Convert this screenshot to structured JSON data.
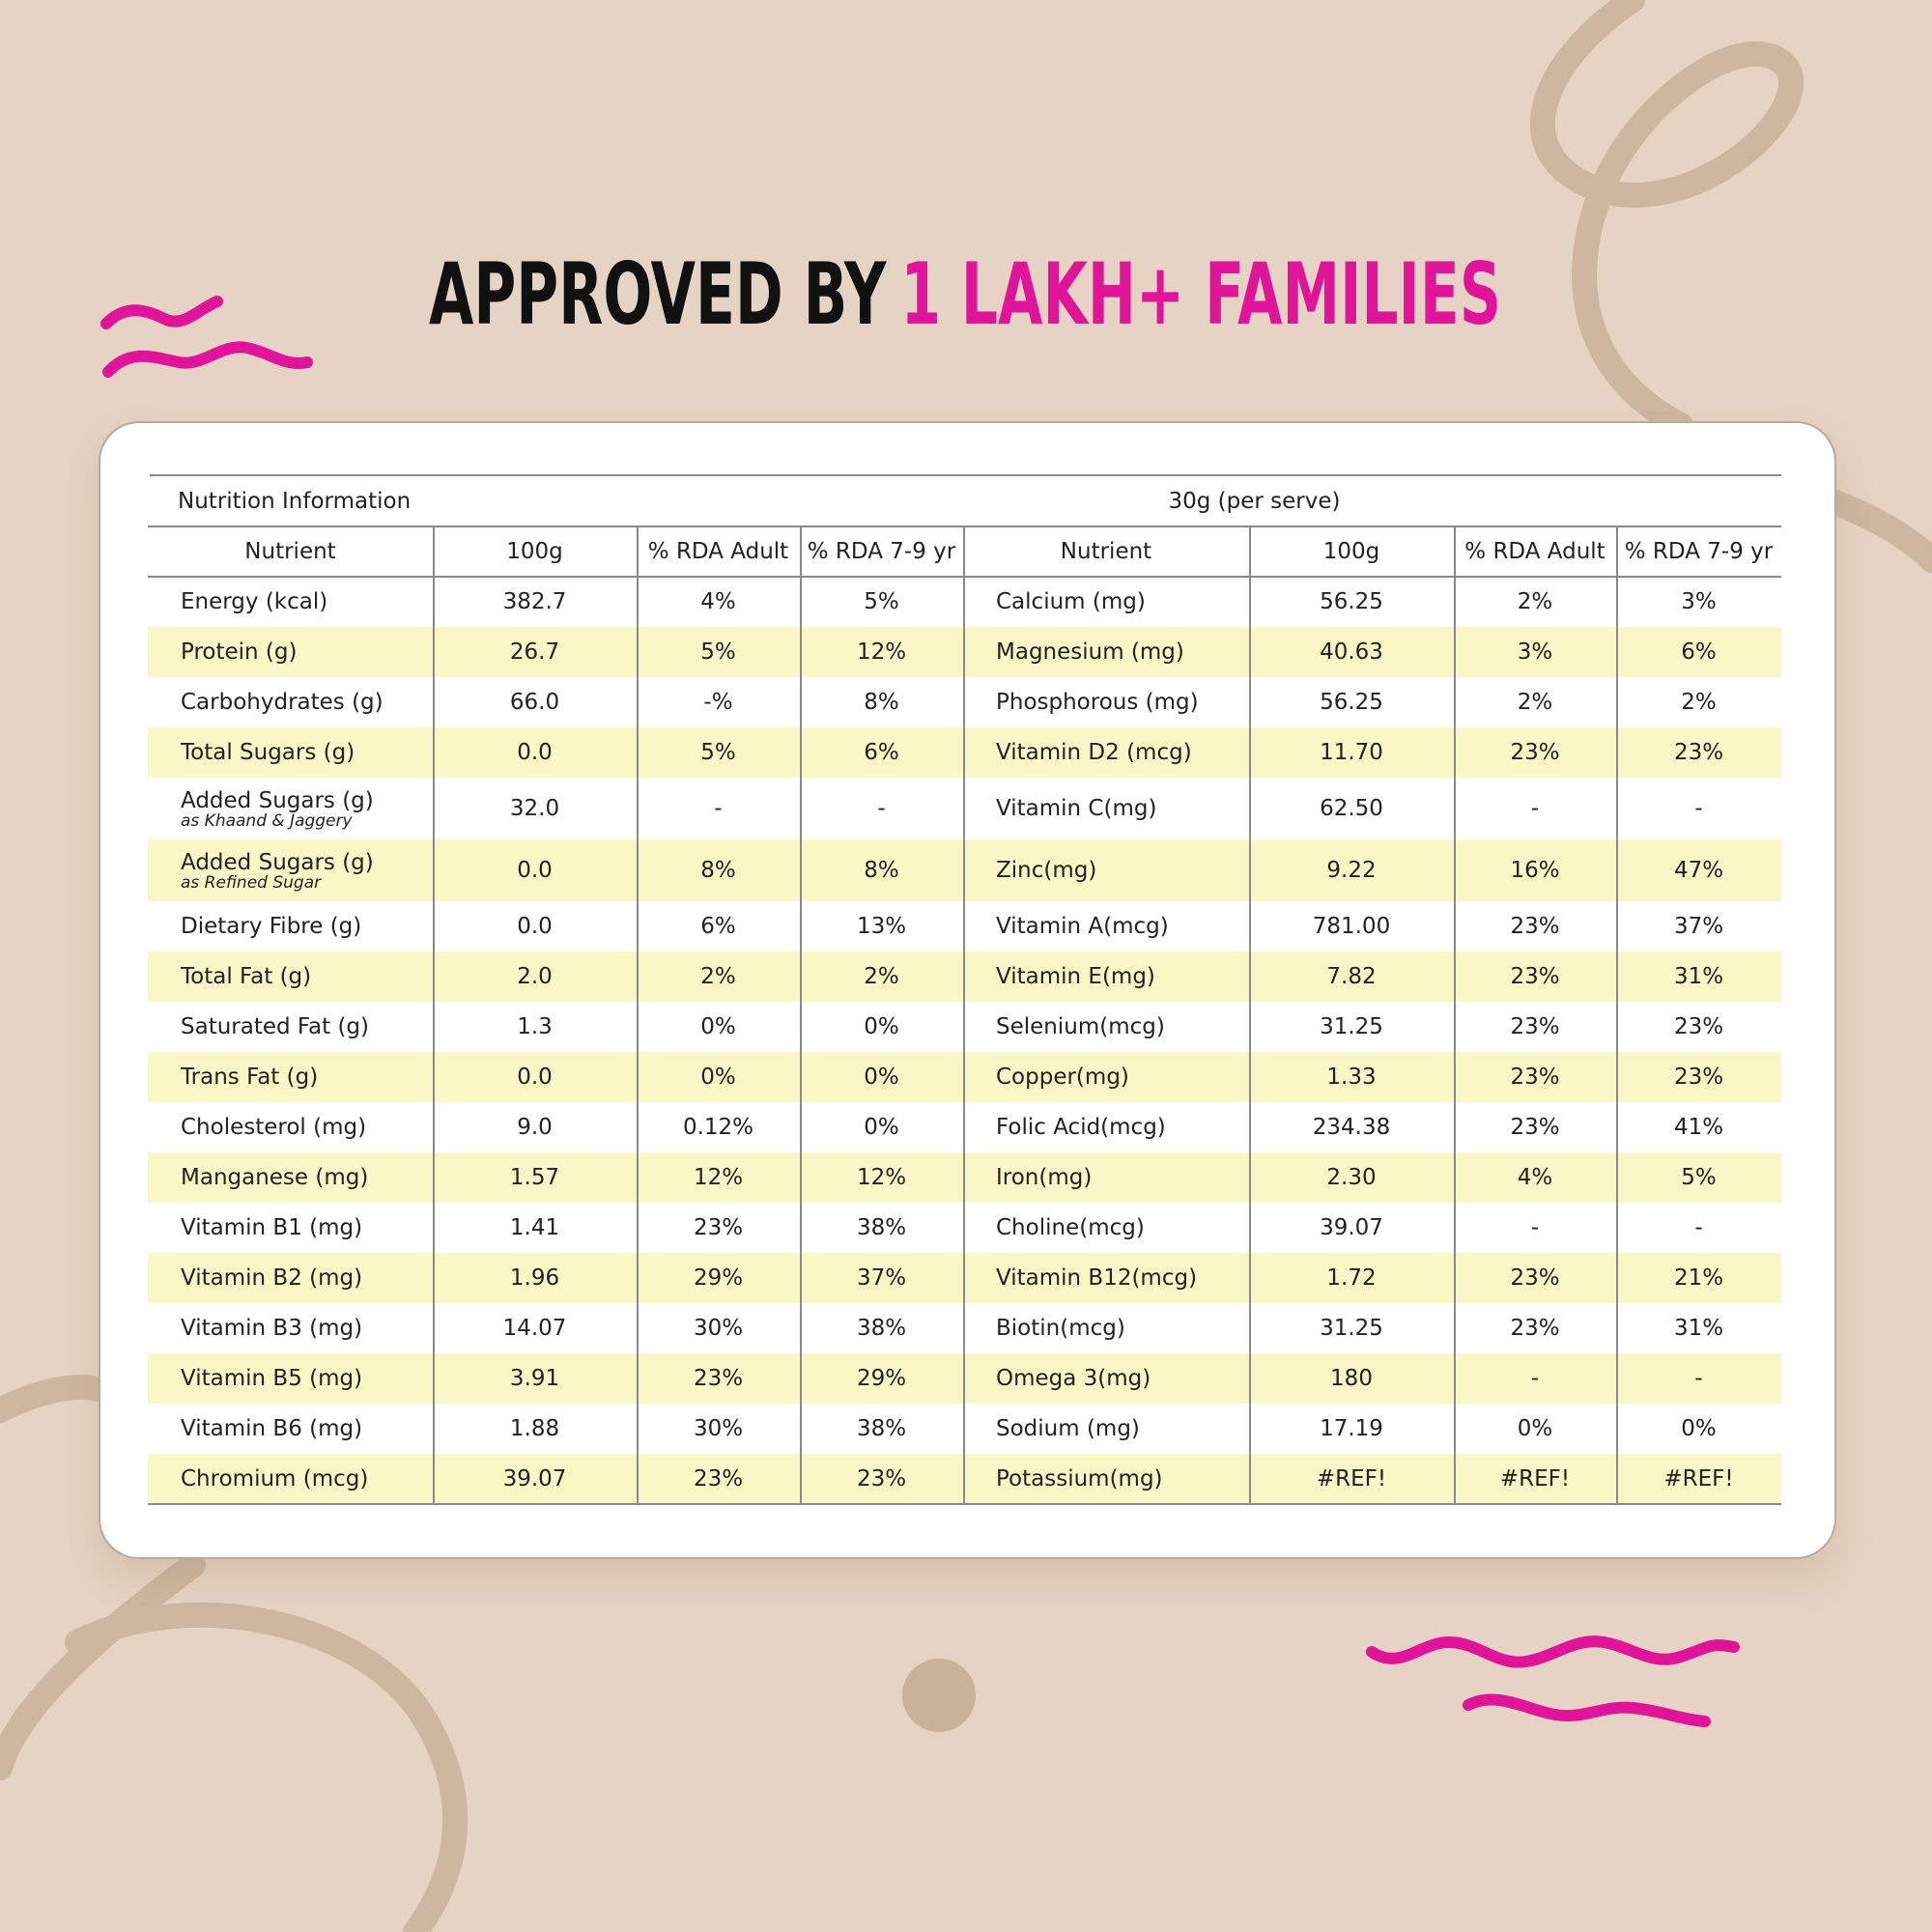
{
  "header": {
    "title_black": "APPROVED BY",
    "title_pink": "1 LAKH+ FAMILIES"
  },
  "table": {
    "caption": "Nutrition Information",
    "serve": "30g (per serve)",
    "columns": [
      "Nutrient",
      "100g",
      "% RDA Adult",
      "% RDA 7-9 yr",
      "Nutrient",
      "100g",
      "% RDA Adult",
      "% RDA 7-9 yr"
    ],
    "rows": [
      {
        "cells": [
          "Energy (kcal)",
          "382.7",
          "4%",
          "5%",
          "Calcium (mg)",
          "56.25",
          "2%",
          "3%"
        ]
      },
      {
        "cells": [
          "Protein (g)",
          "26.7",
          "5%",
          "12%",
          "Magnesium (mg)",
          "40.63",
          "3%",
          "6%"
        ]
      },
      {
        "cells": [
          "Carbohydrates (g)",
          "66.0",
          "-%",
          "8%",
          "Phosphorous (mg)",
          "56.25",
          "2%",
          "2%"
        ]
      },
      {
        "cells": [
          "Total Sugars (g)",
          "0.0",
          "5%",
          "6%",
          "Vitamin D2 (mcg)",
          "11.70",
          "23%",
          "23%"
        ]
      },
      {
        "cells": [
          "Added Sugars (g)",
          "32.0",
          "-",
          "-",
          "Vitamin C(mg)",
          "62.50",
          "-",
          "-"
        ],
        "note": "as Khaand & Jaggery"
      },
      {
        "cells": [
          "Added Sugars (g)",
          "0.0",
          "8%",
          "8%",
          "Zinc(mg)",
          "9.22",
          "16%",
          "47%"
        ],
        "note": "as Refined Sugar"
      },
      {
        "cells": [
          "Dietary Fibre (g)",
          "0.0",
          "6%",
          "13%",
          "Vitamin A(mcg)",
          "781.00",
          "23%",
          "37%"
        ]
      },
      {
        "cells": [
          "Total Fat (g)",
          "2.0",
          "2%",
          "2%",
          "Vitamin E(mg)",
          "7.82",
          "23%",
          "31%"
        ]
      },
      {
        "cells": [
          "Saturated Fat (g)",
          "1.3",
          "0%",
          "0%",
          "Selenium(mcg)",
          "31.25",
          "23%",
          "23%"
        ]
      },
      {
        "cells": [
          "Trans Fat (g)",
          "0.0",
          "0%",
          "0%",
          "Copper(mg)",
          "1.33",
          "23%",
          "23%"
        ]
      },
      {
        "cells": [
          "Cholesterol (mg)",
          "9.0",
          "0.12%",
          "0%",
          "Folic Acid(mcg)",
          "234.38",
          "23%",
          "41%"
        ]
      },
      {
        "cells": [
          "Manganese (mg)",
          "1.57",
          "12%",
          "12%",
          "Iron(mg)",
          "2.30",
          "4%",
          "5%"
        ]
      },
      {
        "cells": [
          "Vitamin B1 (mg)",
          "1.41",
          "23%",
          "38%",
          "Choline(mcg)",
          "39.07",
          "-",
          "-"
        ]
      },
      {
        "cells": [
          "Vitamin B2 (mg)",
          "1.96",
          "29%",
          "37%",
          "Vitamin B12(mcg)",
          "1.72",
          "23%",
          "21%"
        ]
      },
      {
        "cells": [
          "Vitamin B3 (mg)",
          "14.07",
          "30%",
          "38%",
          "Biotin(mcg)",
          "31.25",
          "23%",
          "31%"
        ]
      },
      {
        "cells": [
          "Vitamin B5 (mg)",
          "3.91",
          "23%",
          "29%",
          "Omega 3(mg)",
          "180",
          "-",
          "-"
        ]
      },
      {
        "cells": [
          "Vitamin B6 (mg)",
          "1.88",
          "30%",
          "38%",
          "Sodium (mg)",
          "17.19",
          "0%",
          "0%"
        ]
      },
      {
        "cells": [
          "Chromium (mcg)",
          "39.07",
          "23%",
          "23%",
          "Potassium(mg)",
          "#REF!",
          "#REF!",
          "#REF!"
        ]
      }
    ]
  }
}
